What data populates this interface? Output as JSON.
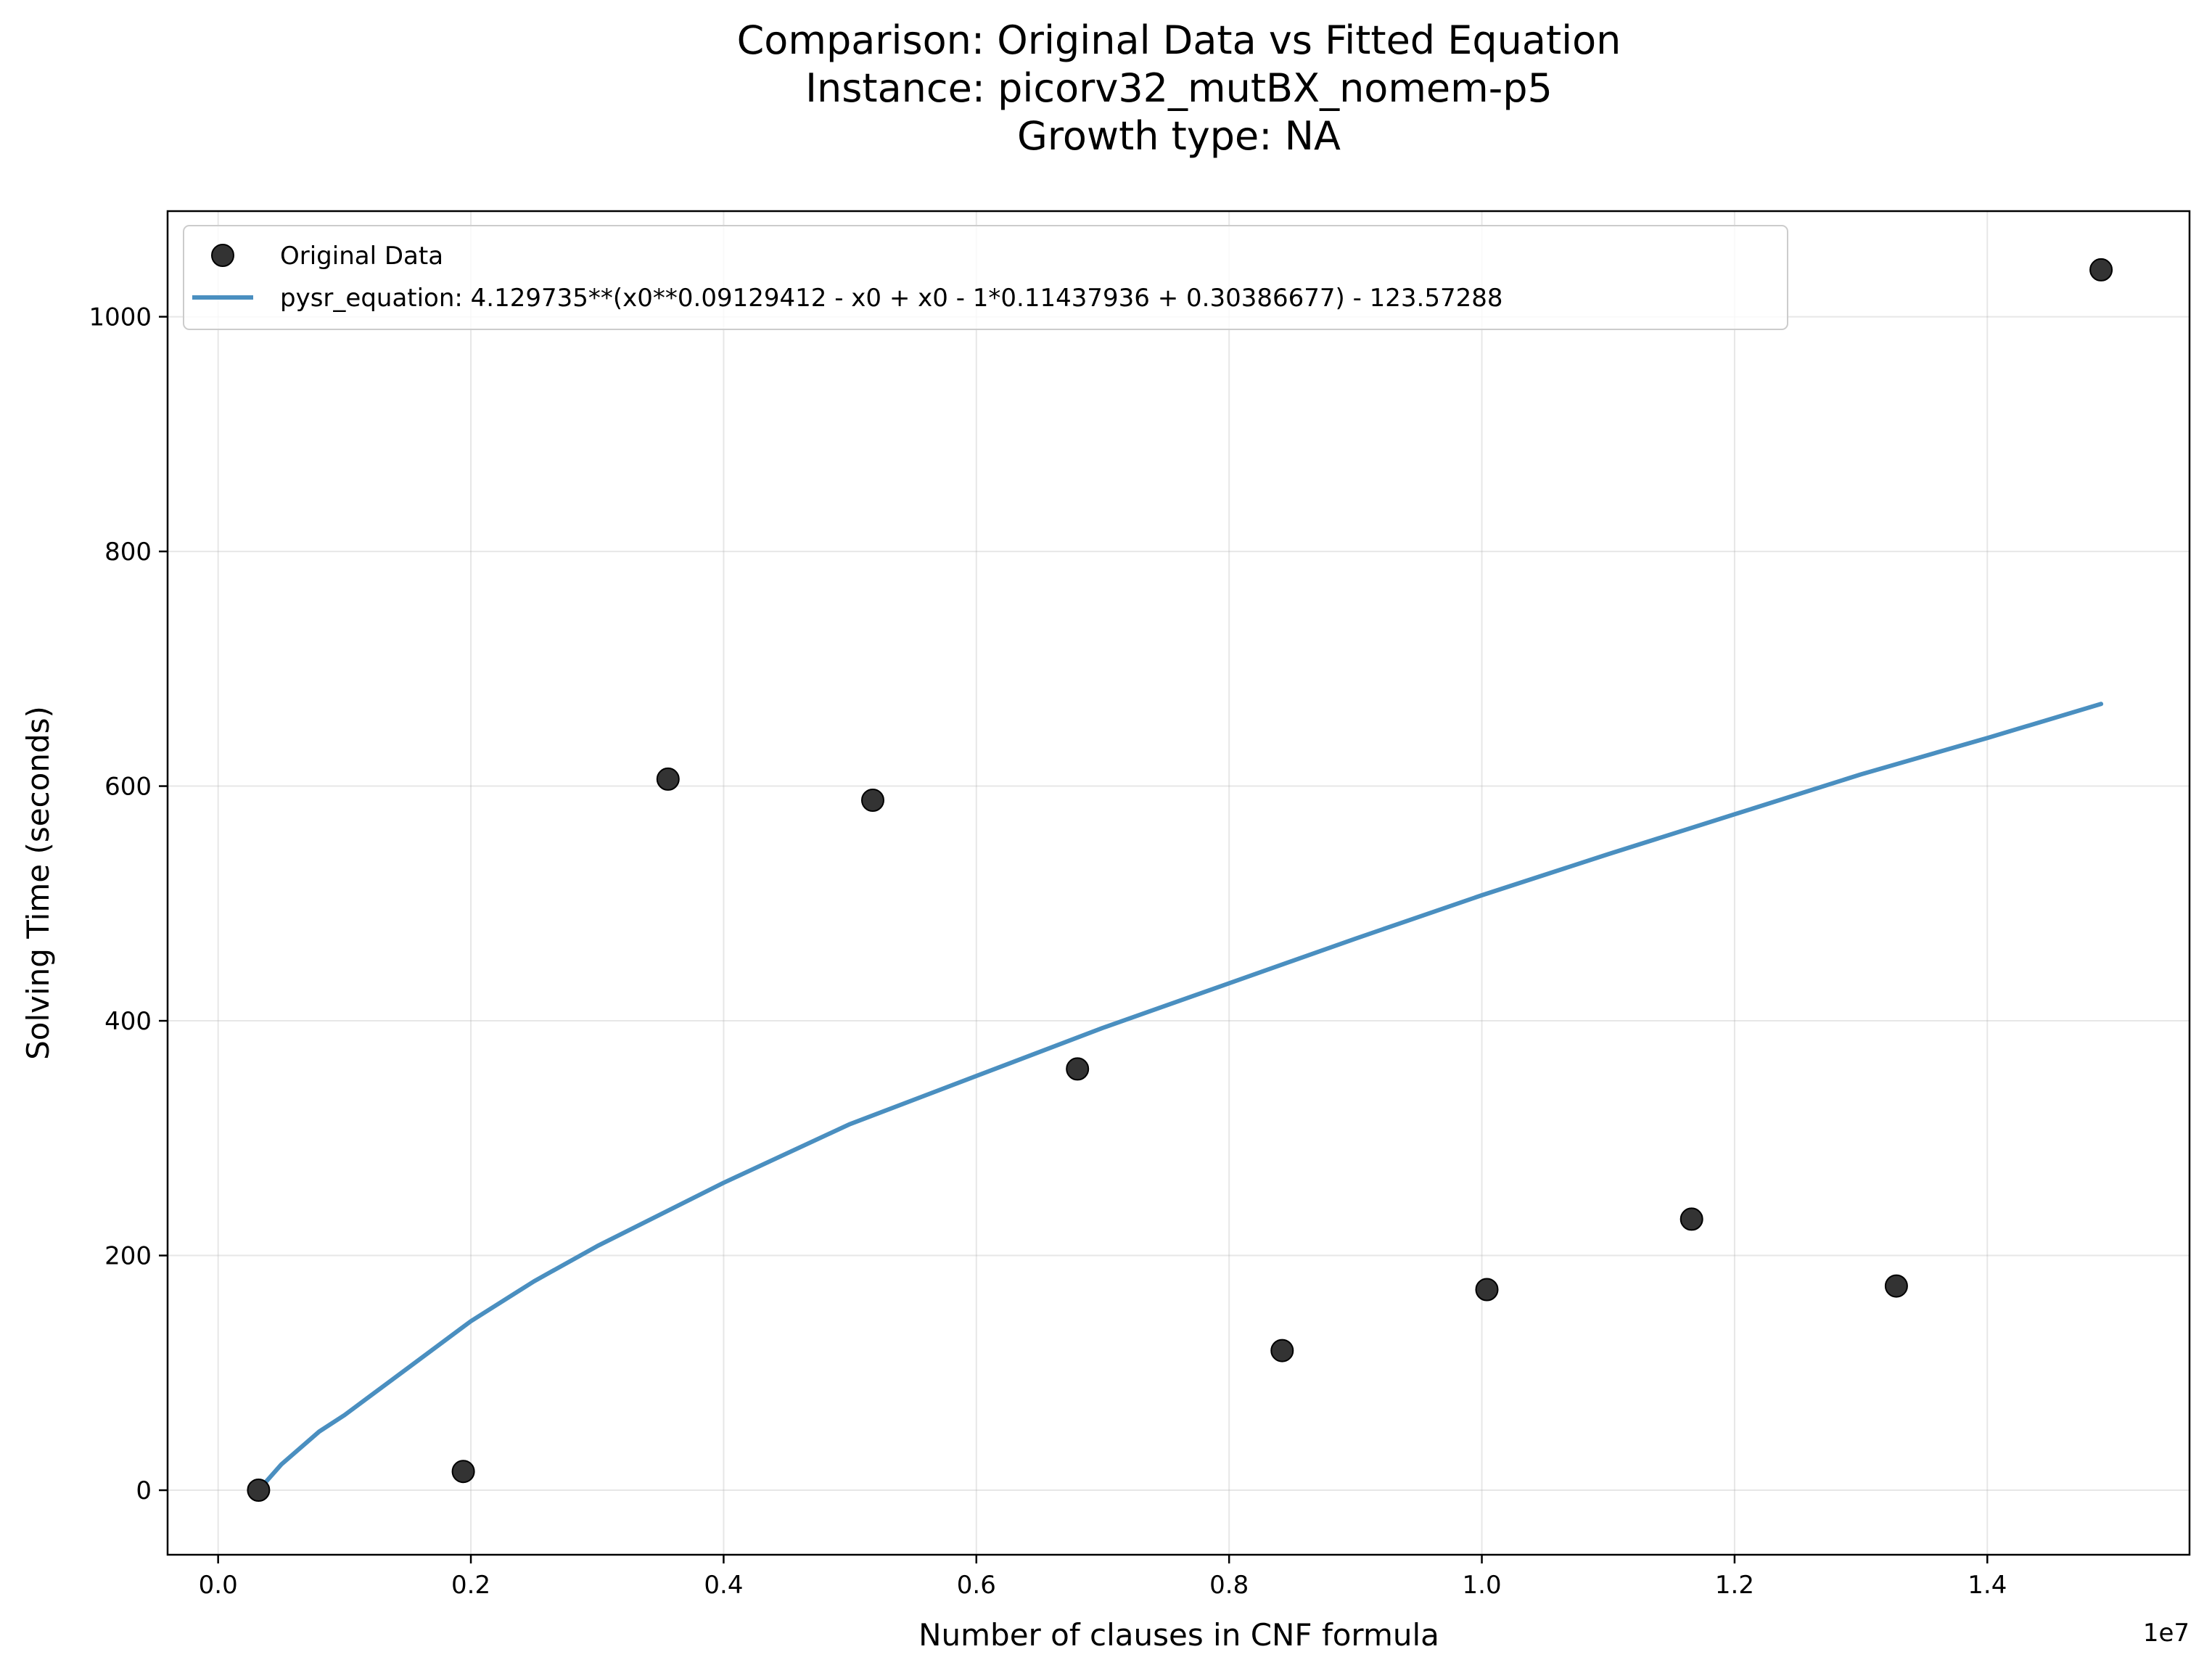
{
  "chart_data": {
    "type": "scatter",
    "title_lines": [
      "Comparison: Original Data vs Fitted Equation",
      "Instance: picorv32_mutBX_nomem-p5",
      "Growth type: NA"
    ],
    "xlabel": "Number of clauses in CNF formula",
    "ylabel": "Solving Time (seconds)",
    "x_offset_label": "1e7",
    "xlim": [
      -0.04,
      1.56
    ],
    "ylim": [
      -55,
      1090
    ],
    "x_ticks": [
      0.0,
      0.2,
      0.4,
      0.6,
      0.8,
      1.0,
      1.2,
      1.4
    ],
    "x_tick_labels": [
      "0.0",
      "0.2",
      "0.4",
      "0.6",
      "0.8",
      "1.0",
      "1.2",
      "1.4"
    ],
    "y_ticks": [
      0,
      200,
      400,
      600,
      800,
      1000
    ],
    "y_tick_labels": [
      "0",
      "200",
      "400",
      "600",
      "800",
      "1000"
    ],
    "grid": true,
    "legend_position": "top-left",
    "series": [
      {
        "name": "Original Data",
        "kind": "scatter",
        "color": "#333333",
        "x": [
          0.032,
          0.194,
          0.356,
          0.518,
          0.68,
          0.842,
          1.004,
          1.166,
          1.328,
          1.49
        ],
        "y": [
          0,
          16,
          606,
          588,
          359,
          119,
          171,
          231,
          174,
          1040
        ]
      },
      {
        "name": "pysr_equation: 4.129735**(x0**0.09129412 - x0 + x0 - 1*0.11437936 + 0.30386677) - 123.57288",
        "kind": "line",
        "color": "#4a8fc0",
        "x": [
          0.032,
          0.05,
          0.08,
          0.1,
          0.15,
          0.2,
          0.25,
          0.3,
          0.4,
          0.5,
          0.6,
          0.7,
          0.8,
          0.9,
          1.0,
          1.1,
          1.2,
          1.3,
          1.4,
          1.49
        ],
        "y": [
          0,
          22,
          50,
          64,
          104,
          144,
          178,
          208,
          262,
          312,
          353,
          394,
          432,
          470,
          507,
          542,
          576,
          610,
          641,
          670
        ]
      }
    ]
  }
}
